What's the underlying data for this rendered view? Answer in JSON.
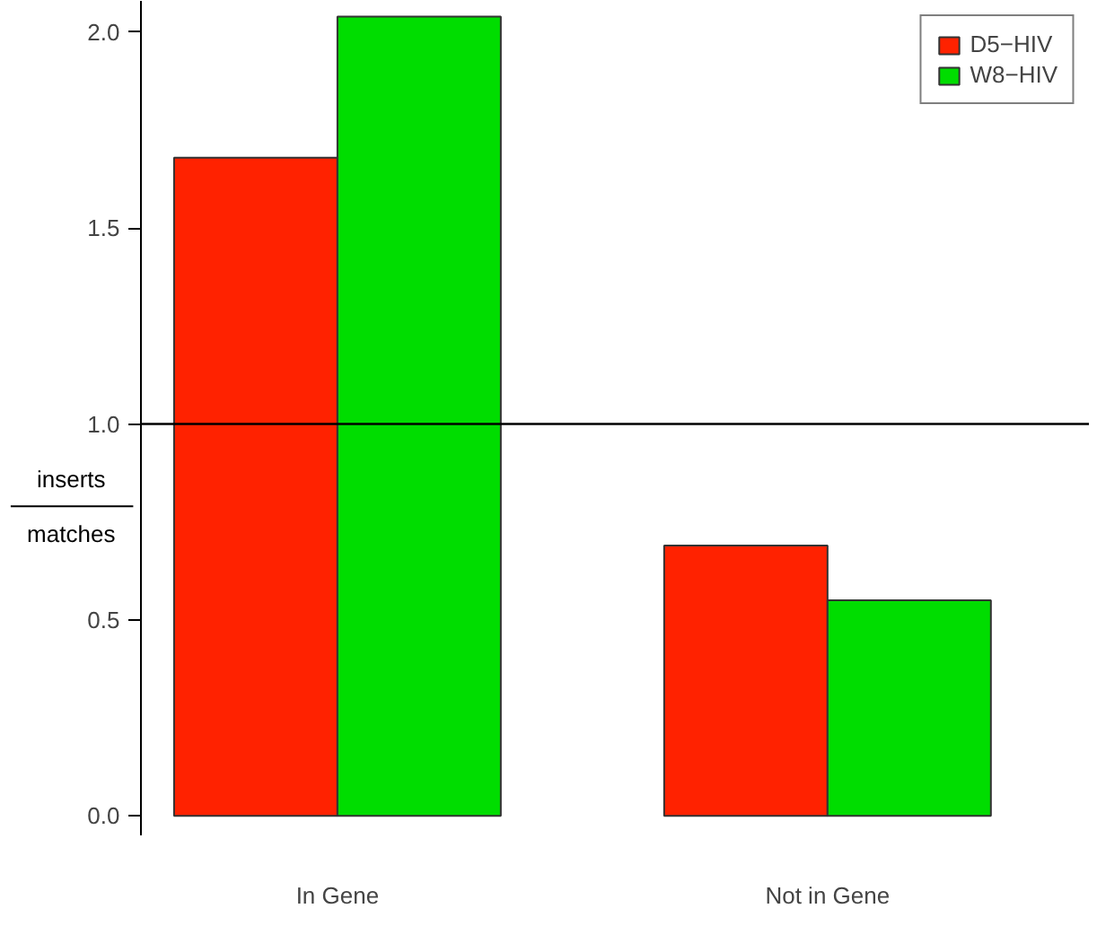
{
  "chart_data": {
    "type": "bar",
    "categories": [
      "In Gene",
      "Not in Gene"
    ],
    "series": [
      {
        "name": "D5−HIV",
        "color": "#ff2200",
        "values": [
          1.68,
          0.69
        ]
      },
      {
        "name": "W8−HIV",
        "color": "#00dd00",
        "values": [
          2.04,
          0.55
        ]
      }
    ],
    "ylabel": "inserts\nmatches",
    "ylim": [
      -0.05,
      2.08
    ],
    "yticks": [
      {
        "value": 0,
        "label": "0.0"
      },
      {
        "value": 0.5,
        "label": "0.5"
      },
      {
        "value": 1,
        "label": "1.0"
      },
      {
        "value": 1.5,
        "label": "1.5"
      },
      {
        "value": 2,
        "label": "2.0"
      }
    ],
    "ref_lines": [
      {
        "axis": "y",
        "value": 1,
        "label": null,
        "color": "#000000"
      }
    ],
    "legend": "top right",
    "grid": false
  }
}
